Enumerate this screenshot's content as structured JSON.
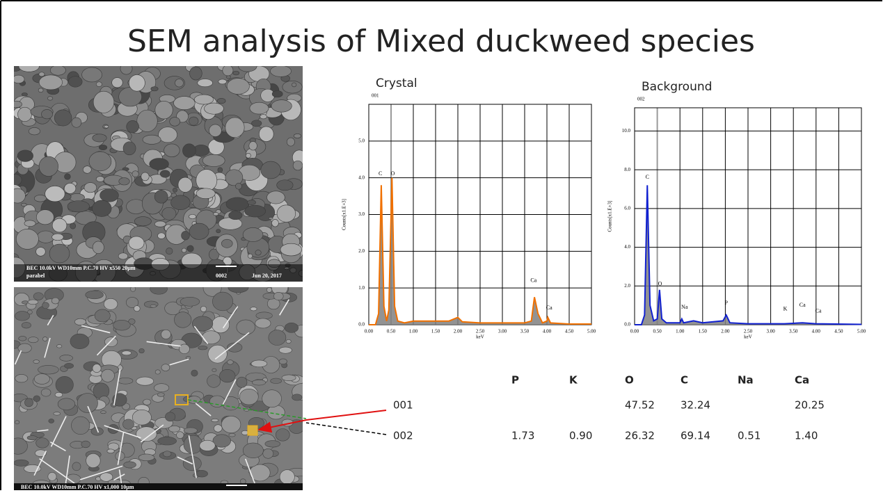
{
  "title": "SEM analysis of Mixed duckweed species",
  "sem_images": [
    {
      "caption": "BEC  10.0kV WD10mm P.C.70  HV    x550      20µm",
      "caption2": "parabel",
      "id": "0002",
      "date": "Jun 20, 2017"
    },
    {
      "caption": "BEC  10.0kV   WD10mm    P.C.70   HV      x1,000    10µm"
    }
  ],
  "chart_data": [
    {
      "type": "area",
      "title": "Crystal",
      "subtitle": "001",
      "x_label": "keV",
      "y_label": "Counts[x1.E+3]",
      "x": [
        0,
        0.15,
        0.22,
        0.28,
        0.34,
        0.4,
        0.45,
        0.52,
        0.58,
        0.65,
        0.8,
        1.0,
        1.2,
        1.5,
        1.8,
        2.0,
        2.1,
        2.5,
        3.0,
        3.5,
        3.65,
        3.72,
        3.8,
        3.9,
        4.0,
        4.02,
        4.08,
        4.5,
        5.0
      ],
      "series": [
        {
          "color": "#f07000",
          "values": [
            0,
            0,
            0.3,
            3.8,
            0.5,
            0.1,
            0.4,
            4.0,
            0.5,
            0.1,
            0.05,
            0.1,
            0.1,
            0.1,
            0.1,
            0.2,
            0.08,
            0.05,
            0.05,
            0.05,
            0.1,
            0.75,
            0.3,
            0.05,
            0.1,
            0.2,
            0.05,
            0.02,
            0.02
          ]
        }
      ],
      "annotations": [
        {
          "text": "C",
          "x": 0.26,
          "y": 4.1
        },
        {
          "text": "O",
          "x": 0.54,
          "y": 4.1
        },
        {
          "text": "Ca",
          "x": 3.7,
          "y": 1.2
        },
        {
          "text": "Ca",
          "x": 4.05,
          "y": 0.45
        }
      ],
      "xlim": [
        0,
        5
      ],
      "ylim": [
        0,
        6
      ],
      "xticks": [
        {
          "value": 0,
          "label": "0.00"
        },
        {
          "value": 0.5,
          "label": "0.50"
        },
        {
          "value": 1,
          "label": "1.00"
        },
        {
          "value": 1.5,
          "label": "1.50"
        },
        {
          "value": 2,
          "label": "2.00"
        },
        {
          "value": 2.5,
          "label": "2.50"
        },
        {
          "value": 3,
          "label": "3.00"
        },
        {
          "value": 3.5,
          "label": "3.50"
        },
        {
          "value": 4,
          "label": "4.00"
        },
        {
          "value": 4.5,
          "label": "4.50"
        },
        {
          "value": 5,
          "label": "5.00"
        }
      ],
      "yticks": [
        {
          "value": 0,
          "label": "0.0"
        },
        {
          "value": 1,
          "label": "1.0"
        },
        {
          "value": 2,
          "label": "2.0"
        },
        {
          "value": 3,
          "label": "3.0"
        },
        {
          "value": 4,
          "label": "4.0"
        },
        {
          "value": 5,
          "label": "5.0"
        }
      ],
      "grid": true
    },
    {
      "type": "area",
      "title": "Background",
      "subtitle": "002",
      "x_label": "keV",
      "y_label": "Counts[x1.E+3]",
      "x": [
        0,
        0.15,
        0.22,
        0.28,
        0.34,
        0.42,
        0.5,
        0.55,
        0.6,
        0.7,
        1.0,
        1.04,
        1.08,
        1.3,
        1.5,
        1.95,
        2.02,
        2.1,
        2.5,
        3.3,
        3.7,
        4.0,
        5.0
      ],
      "series": [
        {
          "color": "#1020d0",
          "values": [
            0,
            0,
            0.5,
            7.2,
            1.0,
            0.2,
            0.3,
            1.8,
            0.3,
            0.1,
            0.1,
            0.3,
            0.1,
            0.2,
            0.1,
            0.2,
            0.5,
            0.1,
            0.05,
            0.05,
            0.1,
            0.05,
            0.02
          ]
        }
      ],
      "annotations": [
        {
          "text": "C",
          "x": 0.28,
          "y": 7.6
        },
        {
          "text": "O",
          "x": 0.56,
          "y": 2.1
        },
        {
          "text": "Na",
          "x": 1.1,
          "y": 0.9
        },
        {
          "text": "P",
          "x": 2.02,
          "y": 1.1
        },
        {
          "text": "K",
          "x": 3.32,
          "y": 0.8
        },
        {
          "text": "Ca",
          "x": 3.7,
          "y": 1.0
        },
        {
          "text": "Ca",
          "x": 4.05,
          "y": 0.7
        }
      ],
      "xlim": [
        0,
        5
      ],
      "ylim": [
        0,
        11.2
      ],
      "xticks": [
        {
          "value": 0,
          "label": "0.00"
        },
        {
          "value": 0.5,
          "label": "0.50"
        },
        {
          "value": 1,
          "label": "1.00"
        },
        {
          "value": 1.5,
          "label": "1.50"
        },
        {
          "value": 2,
          "label": "2.00"
        },
        {
          "value": 2.5,
          "label": "2.50"
        },
        {
          "value": 3,
          "label": "3.00"
        },
        {
          "value": 3.5,
          "label": "3.50"
        },
        {
          "value": 4,
          "label": "4.00"
        },
        {
          "value": 4.5,
          "label": "4.50"
        },
        {
          "value": 5,
          "label": "5.00"
        }
      ],
      "yticks": [
        {
          "value": 0,
          "label": "0.0"
        },
        {
          "value": 2,
          "label": "2.0"
        },
        {
          "value": 4,
          "label": "4.0"
        },
        {
          "value": 6,
          "label": "6.0"
        },
        {
          "value": 8,
          "label": "8.0"
        },
        {
          "value": 10,
          "label": "10.0"
        }
      ],
      "grid": true
    }
  ],
  "table": {
    "columns": [
      "P",
      "K",
      "O",
      "C",
      "Na",
      "Ca"
    ],
    "rows": [
      {
        "label": "001",
        "cells": [
          null,
          null,
          "47.52",
          "32.24",
          null,
          "20.25"
        ]
      },
      {
        "label": "002",
        "cells": [
          "1.73",
          "0.90",
          "26.32",
          "69.14",
          "0.51",
          "1.40"
        ]
      }
    ]
  }
}
